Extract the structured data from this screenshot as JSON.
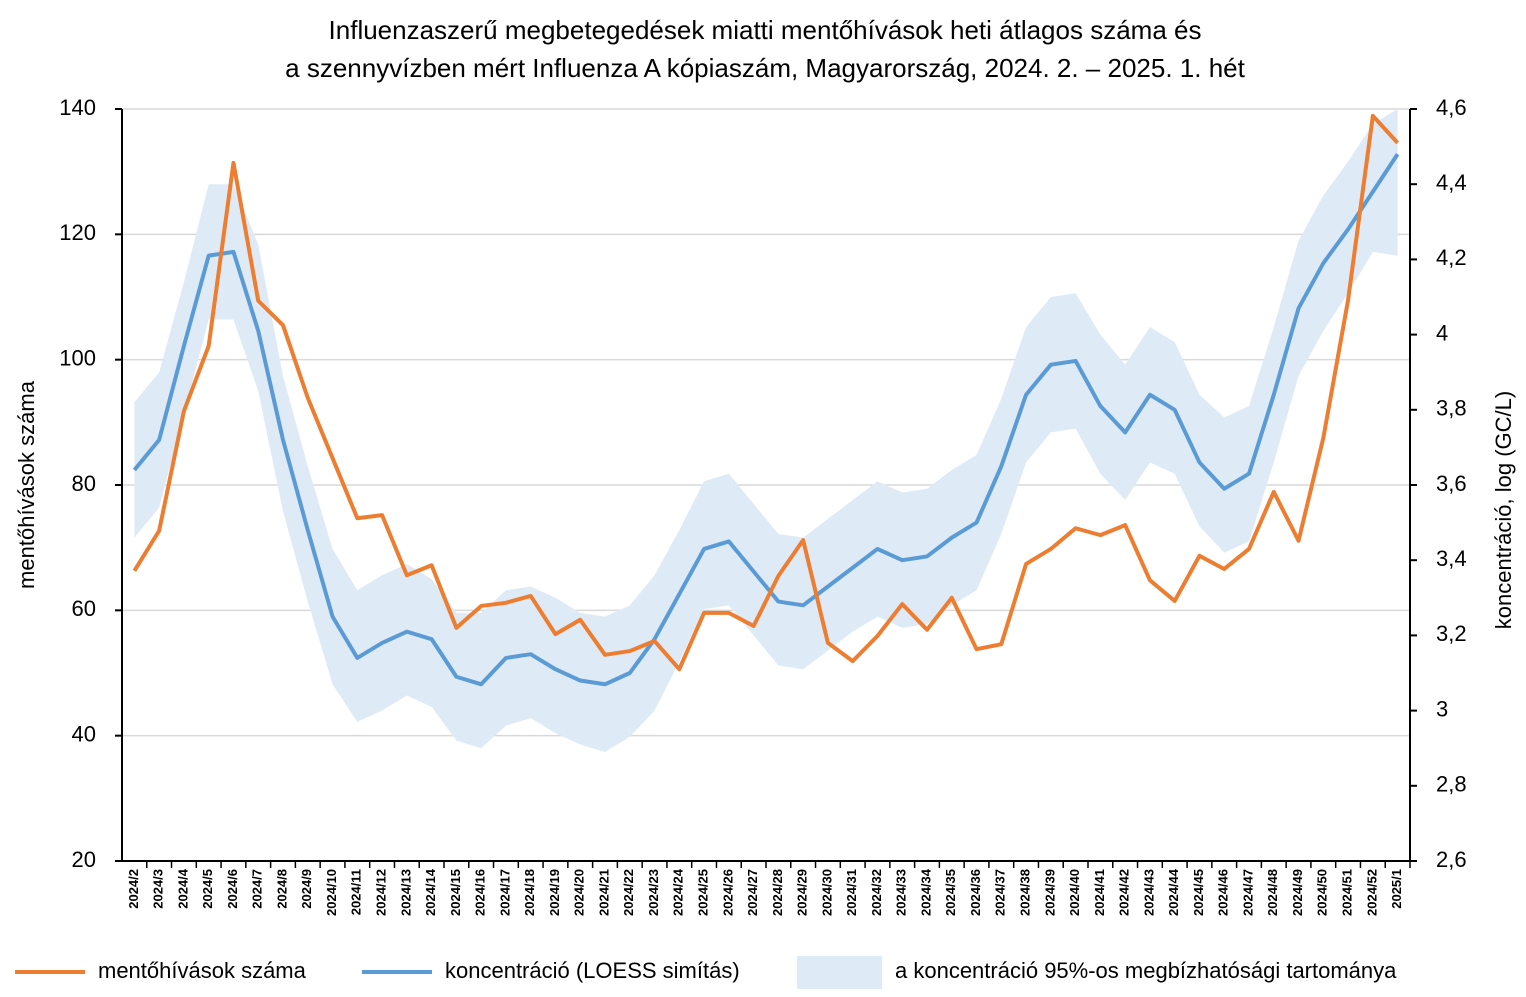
{
  "chart_data": {
    "type": "line",
    "title": [
      "Influenzaszerű megbetegedések miatti mentőhívások heti átlagos száma és",
      "a szennyvízben mért Influenza A kópiaszám, Magyarország, 2024. 2. – 2025. 1. hét"
    ],
    "y_label": "mentőhívások száma",
    "y2_label": "koncentráció, log (GC/L)",
    "categories": [
      "2024/2",
      "2024/3",
      "2024/4",
      "2024/5",
      "2024/6",
      "2024/7",
      "2024/8",
      "2024/9",
      "2024/10",
      "2024/11",
      "2024/12",
      "2024/13",
      "2024/14",
      "2024/15",
      "2024/16",
      "2024/17",
      "2024/18",
      "2024/19",
      "2024/20",
      "2024/21",
      "2024/22",
      "2024/23",
      "2024/24",
      "2024/25",
      "2024/26",
      "2024/27",
      "2024/28",
      "2024/29",
      "2024/30",
      "2024/31",
      "2024/32",
      "2024/33",
      "2024/34",
      "2024/35",
      "2024/36",
      "2024/37",
      "2024/38",
      "2024/39",
      "2024/40",
      "2024/41",
      "2024/42",
      "2024/43",
      "2024/44",
      "2024/45",
      "2024/46",
      "2024/47",
      "2024/48",
      "2024/49",
      "2024/50",
      "2024/51",
      "2024/52",
      "2025/1"
    ],
    "series": [
      {
        "name": "mentőhívások száma",
        "color": "#ed7d31",
        "axis": "y",
        "values": [
          66.3,
          72.7,
          91.8,
          102.2,
          131.4,
          109.4,
          105.5,
          93.9,
          84.3,
          74.7,
          75.2,
          65.6,
          67.2,
          57.2,
          60.7,
          61.2,
          62.3,
          56.2,
          58.5,
          52.9,
          53.5,
          55.1,
          50.6,
          59.6,
          59.6,
          57.5,
          65.5,
          71.2,
          54.8,
          51.9,
          55.9,
          61.0,
          56.9,
          62.0,
          53.8,
          54.6,
          67.4,
          69.8,
          73.1,
          72.0,
          73.6,
          64.8,
          61.5,
          68.7,
          66.6,
          69.8,
          78.9,
          71.1,
          87.5,
          109.5,
          138.9,
          134.6
        ]
      },
      {
        "name": "koncentráció (LOESS simítás)",
        "color": "#5b9bd5",
        "axis": "y2",
        "values": [
          3.64,
          3.72,
          3.97,
          4.21,
          4.22,
          4.01,
          3.72,
          3.48,
          3.25,
          3.14,
          3.18,
          3.21,
          3.19,
          3.09,
          3.07,
          3.14,
          3.15,
          3.11,
          3.08,
          3.07,
          3.1,
          3.19,
          3.31,
          3.43,
          3.45,
          3.37,
          3.29,
          3.28,
          3.33,
          3.38,
          3.43,
          3.4,
          3.41,
          3.46,
          3.5,
          3.65,
          3.84,
          3.92,
          3.93,
          3.81,
          3.74,
          3.84,
          3.8,
          3.66,
          3.59,
          3.63,
          3.84,
          4.07,
          4.19,
          4.28,
          4.38,
          4.48
        ]
      },
      {
        "name": "a koncentráció 95%-os megbízhatósági tartománya",
        "color": "#deebf7",
        "axis": "y2",
        "upper": [
          3.82,
          3.9,
          4.14,
          4.4,
          4.4,
          4.24,
          3.89,
          3.65,
          3.43,
          3.32,
          3.36,
          3.39,
          3.35,
          3.26,
          3.26,
          3.32,
          3.33,
          3.3,
          3.26,
          3.25,
          3.28,
          3.36,
          3.48,
          3.61,
          3.63,
          3.55,
          3.47,
          3.46,
          3.51,
          3.56,
          3.61,
          3.58,
          3.59,
          3.64,
          3.68,
          3.83,
          4.02,
          4.1,
          4.11,
          4.0,
          3.92,
          4.02,
          3.98,
          3.84,
          3.78,
          3.81,
          4.02,
          4.25,
          4.37,
          4.46,
          4.56,
          4.6
        ],
        "lower": [
          3.46,
          3.54,
          3.79,
          4.04,
          4.04,
          3.85,
          3.53,
          3.29,
          3.07,
          2.97,
          3.0,
          3.04,
          3.01,
          2.92,
          2.9,
          2.96,
          2.98,
          2.94,
          2.91,
          2.89,
          2.93,
          3.0,
          3.13,
          3.27,
          3.28,
          3.2,
          3.12,
          3.11,
          3.16,
          3.21,
          3.25,
          3.22,
          3.23,
          3.28,
          3.32,
          3.47,
          3.66,
          3.74,
          3.75,
          3.63,
          3.56,
          3.66,
          3.63,
          3.49,
          3.42,
          3.45,
          3.66,
          3.89,
          4.01,
          4.11,
          4.22,
          4.21
        ]
      }
    ],
    "ylim": [
      20,
      140
    ],
    "yticks": [
      20,
      40,
      60,
      80,
      100,
      120,
      140
    ],
    "y2lim": [
      2.6,
      4.6
    ],
    "y2ticks": [
      {
        "value": 2.6,
        "label": "2,6"
      },
      {
        "value": 2.8,
        "label": "2,8"
      },
      3,
      {
        "value": 3.2,
        "label": "3,2"
      },
      {
        "value": 3.4,
        "label": "3,4"
      },
      {
        "value": 3.6,
        "label": "3,6"
      },
      {
        "value": 3.8,
        "label": "3,8"
      },
      4,
      {
        "value": 4.2,
        "label": "4,2"
      },
      {
        "value": 4.4,
        "label": "4,4"
      },
      {
        "value": 4.6,
        "label": "4,6"
      }
    ],
    "grid": true,
    "legend": "bottom"
  }
}
